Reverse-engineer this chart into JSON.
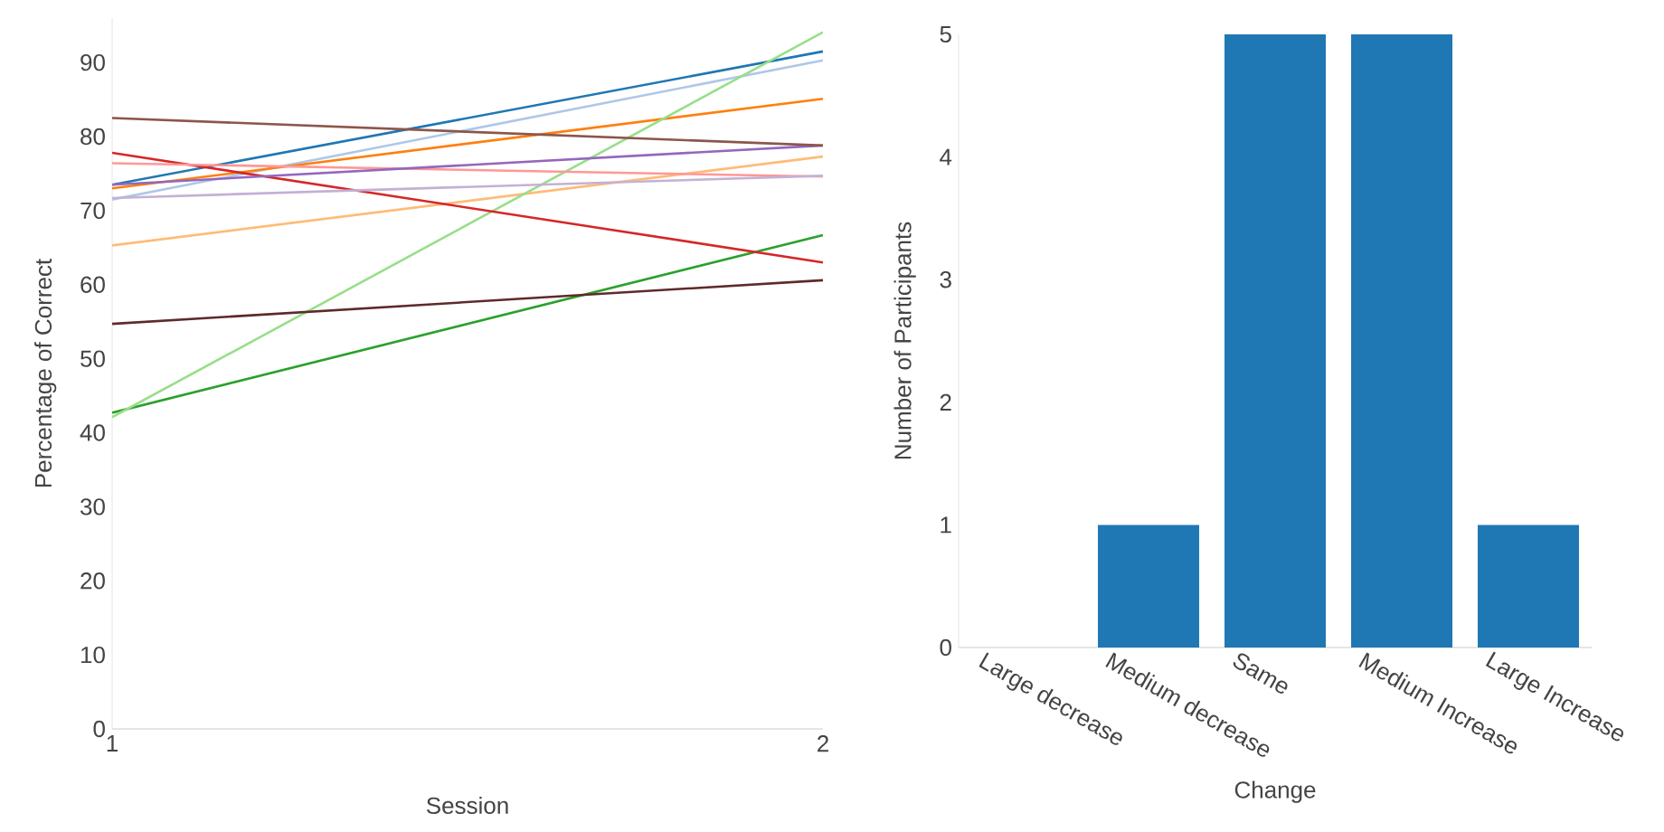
{
  "chart_data": [
    {
      "type": "line",
      "xlabel": "Session",
      "ylabel": "Percentage of Correct",
      "x": [
        1,
        2
      ],
      "xlim": [
        1,
        2
      ],
      "xticks": [
        1,
        2
      ],
      "ylim": [
        0,
        96
      ],
      "yticks": [
        0,
        10,
        20,
        30,
        40,
        50,
        60,
        70,
        80,
        90
      ],
      "grid": false,
      "marker": "none",
      "line_style": "solid",
      "series": [
        {
          "color": "#1f77b4",
          "values": [
            73.5,
            91.5
          ]
        },
        {
          "color": "#aec7e8",
          "values": [
            71.5,
            90.3
          ]
        },
        {
          "color": "#ff7f0e",
          "values": [
            73,
            85.1
          ]
        },
        {
          "color": "#ffbb78",
          "values": [
            65.3,
            77.3
          ]
        },
        {
          "color": "#2ca02c",
          "values": [
            42.7,
            66.7
          ]
        },
        {
          "color": "#98df8a",
          "values": [
            42.1,
            94.1
          ]
        },
        {
          "color": "#d62728",
          "values": [
            77.8,
            63
          ]
        },
        {
          "color": "#ff9896",
          "values": [
            76.4,
            74.6
          ]
        },
        {
          "color": "#9467bd",
          "values": [
            73.5,
            78.8
          ]
        },
        {
          "color": "#c5b0d5",
          "values": [
            71.7,
            74.7
          ]
        },
        {
          "color": "#8c564b",
          "values": [
            82.5,
            78.8
          ]
        },
        {
          "color": "#5e2a2a",
          "values": [
            54.7,
            60.6
          ]
        }
      ]
    },
    {
      "type": "bar",
      "xlabel": "Change",
      "ylabel": "Number of Participants",
      "categories": [
        "Large decrease",
        "Medium decrease",
        "Same",
        "Medium Increase",
        "Large Increase"
      ],
      "values": [
        0,
        1,
        5,
        5,
        1
      ],
      "color": "#1f77b4",
      "ylim": [
        0,
        5
      ],
      "yticks": [
        0,
        1,
        2,
        3,
        4,
        5
      ],
      "grid": false
    }
  ]
}
